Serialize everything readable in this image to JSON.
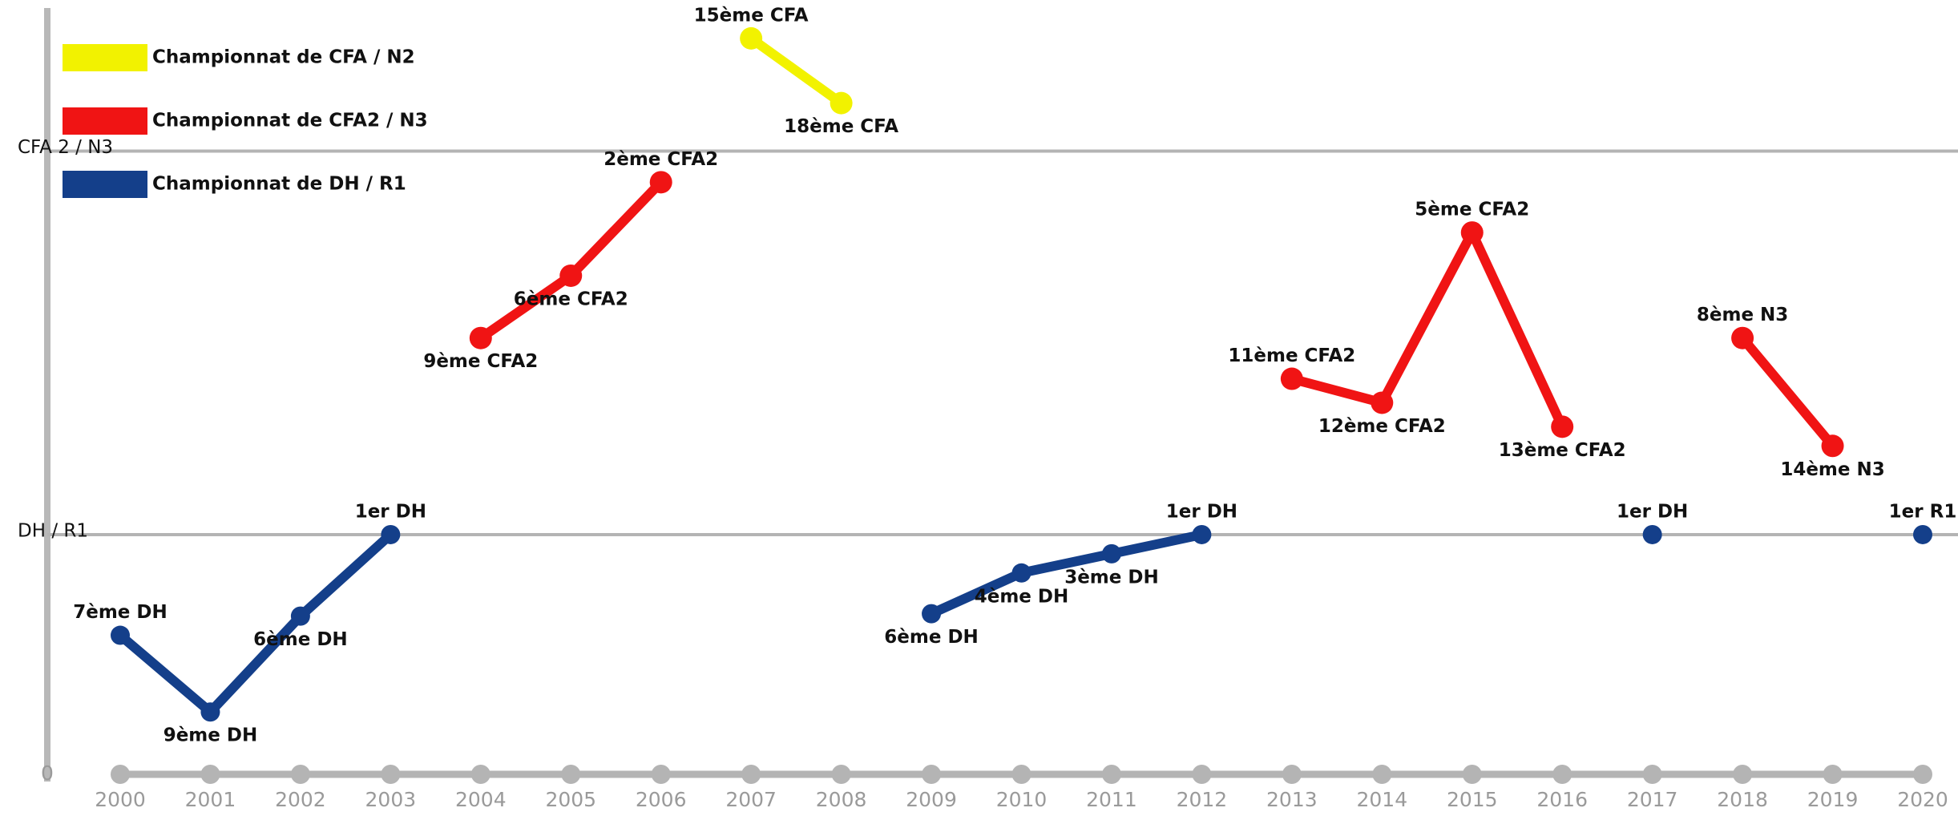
{
  "chart_data": {
    "type": "line",
    "categories": [
      "2000",
      "2001",
      "2002",
      "2003",
      "2004",
      "2005",
      "2006",
      "2007",
      "2008",
      "2009",
      "2010",
      "2011",
      "2012",
      "2013",
      "2014",
      "2015",
      "2016",
      "2017",
      "2018",
      "2019",
      "2020"
    ],
    "series": [
      {
        "name": "Championnat de CFA / N2",
        "color": "#f2f200",
        "values": [
          null,
          null,
          null,
          null,
          null,
          null,
          null,
          30.7,
          28.0,
          null,
          null,
          null,
          null,
          null,
          null,
          null,
          null,
          null,
          null,
          null,
          null
        ],
        "value_labels": [
          null,
          null,
          null,
          null,
          null,
          null,
          null,
          "15ème CFA",
          "18ème CFA",
          null,
          null,
          null,
          null,
          null,
          null,
          null,
          null,
          null,
          null,
          null,
          null
        ]
      },
      {
        "name": "Championnat de CFA2 / N3",
        "color": "#f01414",
        "values": [
          null,
          null,
          null,
          null,
          18.2,
          20.8,
          24.7,
          null,
          null,
          null,
          null,
          null,
          null,
          16.5,
          15.5,
          22.6,
          14.5,
          null,
          18.2,
          13.7,
          null
        ],
        "value_labels": [
          null,
          null,
          null,
          null,
          "9ème CFA2",
          "6ème CFA2",
          "2ème CFA2",
          null,
          null,
          null,
          null,
          null,
          null,
          "11ème CFA2",
          "12ème CFA2",
          "5ème CFA2",
          "13ème CFA2",
          null,
          "8ème N3",
          "14ème N3",
          null
        ]
      },
      {
        "name": "Championnat de DH / R1",
        "color": "#143f8a",
        "values": [
          5.8,
          2.6,
          6.6,
          10,
          null,
          null,
          null,
          null,
          null,
          6.7,
          8.4,
          9.2,
          10,
          null,
          null,
          null,
          null,
          10,
          null,
          null,
          10
        ],
        "value_labels": [
          "7ème DH",
          "9ème DH",
          "6ème DH",
          "1er DH",
          null,
          null,
          null,
          null,
          null,
          "6ème DH",
          "4ème DH",
          "3ème DH",
          "1er DH",
          null,
          null,
          null,
          null,
          "1er DH",
          null,
          null,
          "1er R1"
        ]
      },
      {
        "color": "#b4b4b4",
        "values": [
          0,
          0,
          0,
          0,
          0,
          0,
          0,
          0,
          0,
          0,
          0,
          0,
          0,
          0,
          0,
          0,
          0,
          0,
          0,
          0,
          0
        ]
      }
    ],
    "ylim": [
      0,
      32
    ],
    "yticks": [
      0,
      {
        "value": 10,
        "label": "DH / R1"
      },
      {
        "value": 26,
        "label": "CFA 2 / N3"
      }
    ],
    "grid": true,
    "legend": "top-left"
  }
}
